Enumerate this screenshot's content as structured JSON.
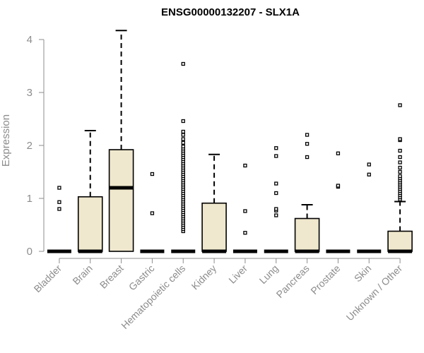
{
  "chart_data": {
    "type": "box",
    "title": "ENSG00000132207 - SLX1A",
    "xlabel": "",
    "ylabel": "Expression",
    "ylim": [
      0,
      4.2
    ],
    "yticks": [
      "0",
      "1",
      "2",
      "3",
      "4"
    ],
    "grid": false,
    "legend": "none",
    "colors": {
      "box_fill": "#efe8ce",
      "stroke": "#000000",
      "axis": "#8c8c8c"
    },
    "categories": [
      "Bladder",
      "Brain",
      "Breast",
      "Gastric",
      "Hematopoietic cells",
      "Kidney",
      "Liver",
      "Lung",
      "Pancreas",
      "Prostate",
      "Skin",
      "Unknown / Other"
    ],
    "boxes": [
      {
        "name": "Bladder",
        "min": 0,
        "q1": 0,
        "median": 0,
        "q3": 0,
        "max": 0,
        "outliers": [
          0.8,
          0.93,
          1.2
        ]
      },
      {
        "name": "Brain",
        "min": 0,
        "q1": 0,
        "median": 0,
        "q3": 1.03,
        "max": 2.28,
        "outliers": []
      },
      {
        "name": "Breast",
        "min": 0,
        "q1": 0,
        "median": 1.2,
        "q3": 1.92,
        "max": 4.17,
        "outliers": []
      },
      {
        "name": "Gastric",
        "min": 0,
        "q1": 0,
        "median": 0,
        "q3": 0,
        "max": 0,
        "outliers": [
          0.72,
          1.46
        ]
      },
      {
        "name": "Hematopoietic cells",
        "min": 0,
        "q1": 0,
        "median": 0,
        "q3": 0,
        "max": 0,
        "outliers": [
          0.38,
          0.42,
          0.46,
          0.5,
          0.54,
          0.58,
          0.62,
          0.66,
          0.7,
          0.74,
          0.78,
          0.82,
          0.86,
          0.9,
          0.94,
          0.98,
          1.02,
          1.06,
          1.1,
          1.14,
          1.18,
          1.22,
          1.26,
          1.3,
          1.34,
          1.38,
          1.42,
          1.46,
          1.5,
          1.54,
          1.58,
          1.62,
          1.66,
          1.7,
          1.74,
          1.78,
          1.82,
          1.86,
          1.9,
          1.94,
          1.98,
          2.05,
          2.12,
          2.2,
          2.26,
          2.46,
          3.54
        ]
      },
      {
        "name": "Kidney",
        "min": 0,
        "q1": 0,
        "median": 0,
        "q3": 0.91,
        "max": 1.83,
        "outliers": []
      },
      {
        "name": "Liver",
        "min": 0,
        "q1": 0,
        "median": 0,
        "q3": 0,
        "max": 0,
        "outliers": [
          0.35,
          0.76,
          1.62
        ]
      },
      {
        "name": "Lung",
        "min": 0,
        "q1": 0,
        "median": 0,
        "q3": 0,
        "max": 0,
        "outliers": [
          0.68,
          0.77,
          0.8,
          1.1,
          1.28,
          1.8,
          1.95
        ]
      },
      {
        "name": "Pancreas",
        "min": 0,
        "q1": 0,
        "median": 0,
        "q3": 0.62,
        "max": 0.88,
        "outliers": [
          1.78,
          2.03,
          2.2
        ]
      },
      {
        "name": "Prostate",
        "min": 0,
        "q1": 0,
        "median": 0,
        "q3": 0,
        "max": 0,
        "outliers": [
          1.22,
          1.24,
          1.85
        ]
      },
      {
        "name": "Skin",
        "min": 0,
        "q1": 0,
        "median": 0,
        "q3": 0,
        "max": 0,
        "outliers": [
          1.45,
          1.64
        ]
      },
      {
        "name": "Unknown / Other",
        "min": 0,
        "q1": 0,
        "median": 0,
        "q3": 0.38,
        "max": 0.94,
        "outliers": [
          0.98,
          1.02,
          1.06,
          1.1,
          1.14,
          1.18,
          1.22,
          1.26,
          1.3,
          1.34,
          1.38,
          1.42,
          1.5,
          1.58,
          1.68,
          1.78,
          1.9,
          2.1,
          2.12,
          2.76
        ]
      }
    ]
  }
}
